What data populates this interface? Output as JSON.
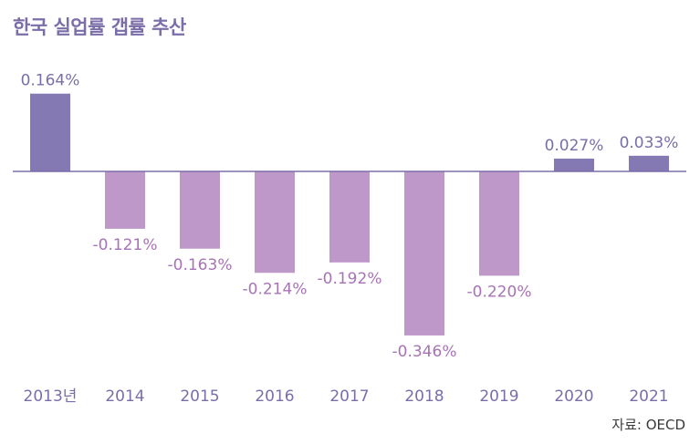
{
  "title": "한국 실업률 갭률 추산",
  "source": "자료: OECD",
  "colors": {
    "positive": "#8479b2",
    "negative": "#bd98c9",
    "positive_label": "#7b6ea8",
    "negative_label": "#a773b5",
    "axis": "#7b6ea8",
    "title": "#7b6ea8"
  },
  "chart_data": {
    "type": "bar",
    "title": "한국 실업률 갭률 추산",
    "categories": [
      "2013년",
      "2014",
      "2015",
      "2016",
      "2017",
      "2018",
      "2019",
      "2020",
      "2021"
    ],
    "values": [
      0.164,
      -0.121,
      -0.163,
      -0.214,
      -0.192,
      -0.346,
      -0.22,
      0.027,
      0.033
    ],
    "value_labels": [
      "0.164%",
      "-0.121%",
      "-0.163%",
      "-0.214%",
      "-0.192%",
      "-0.346%",
      "-0.220%",
      "0.027%",
      "0.033%"
    ],
    "xlabel": "",
    "ylabel": "",
    "ylim": [
      -0.36,
      0.2
    ],
    "grid": false,
    "legend": "none"
  }
}
